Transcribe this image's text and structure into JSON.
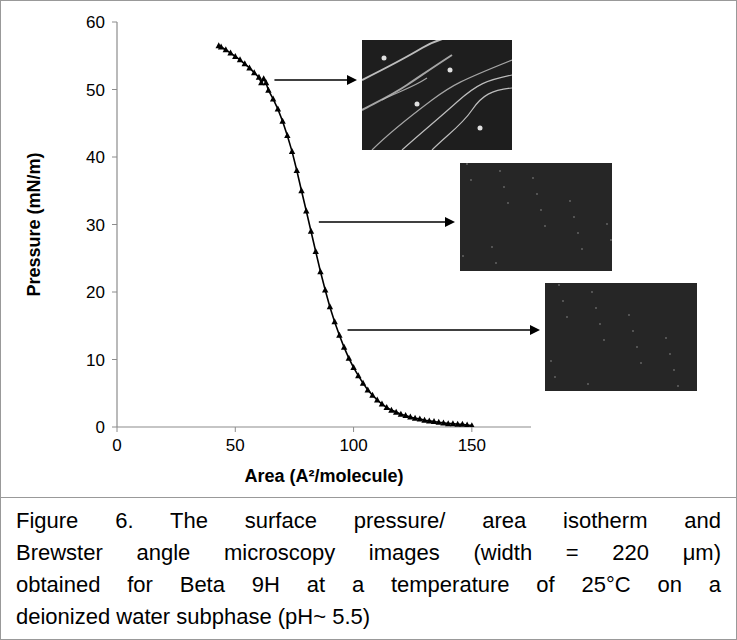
{
  "chart_data": {
    "type": "scatter",
    "marker": "triangle",
    "line_style": "solid",
    "color": "#000000",
    "x_label": "Area (A²/molecule)",
    "y_label": "Pressure (mN/m)",
    "xlim": [
      0,
      175
    ],
    "xticks": [
      0,
      50,
      100,
      150
    ],
    "ylim": [
      0,
      60
    ],
    "yticks": [
      0,
      10,
      20,
      30,
      40,
      50,
      60
    ],
    "grid": false,
    "x": [
      150,
      148,
      146,
      144,
      142,
      140,
      138,
      136,
      134,
      132,
      130,
      128,
      126,
      124,
      122,
      120,
      118,
      116,
      114,
      112,
      110,
      108,
      106,
      104,
      102,
      100,
      98,
      96,
      94,
      92,
      90,
      88,
      86,
      84,
      82,
      80,
      78,
      76,
      74,
      72,
      70,
      68,
      66,
      64,
      63,
      62,
      61,
      60,
      58,
      56,
      54,
      52,
      50,
      48,
      46,
      44,
      43
    ],
    "values": [
      0.2,
      0.3,
      0.4,
      0.4,
      0.5,
      0.5,
      0.6,
      0.7,
      0.8,
      0.9,
      1.0,
      1.2,
      1.3,
      1.5,
      1.7,
      1.9,
      2.2,
      2.5,
      2.9,
      3.4,
      4.0,
      4.7,
      5.5,
      6.5,
      7.6,
      8.8,
      10.2,
      11.8,
      13.6,
      15.6,
      17.8,
      20.3,
      23.0,
      26.0,
      29.0,
      32.0,
      35.0,
      38.0,
      40.8,
      43.2,
      45.3,
      47.1,
      48.6,
      49.9,
      51.0,
      51.6,
      51.0,
      51.8,
      52.5,
      53.2,
      53.8,
      54.4,
      54.9,
      55.4,
      55.9,
      56.3,
      56.5
    ],
    "caption": [
      "Figure 6. The surface pressure/ area isotherm and",
      "Brewster angle microscopy images (width = 220 μm)",
      "obtained for Beta 9H at a temperature of 25°C on a",
      "deionized water subphase (pH~ 5.5)"
    ]
  }
}
